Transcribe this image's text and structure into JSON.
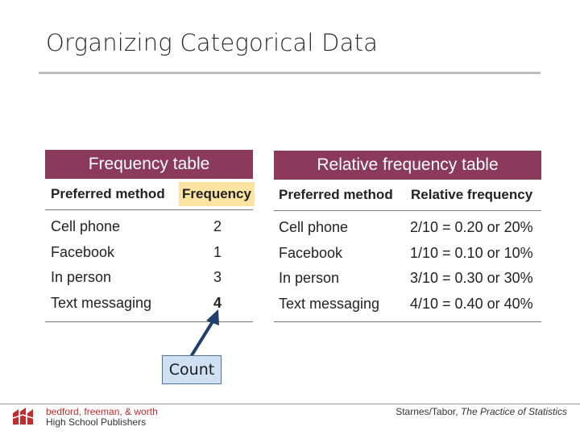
{
  "slide": {
    "title": "Organizing Categorical Data"
  },
  "frequency_table": {
    "header": "Frequency table",
    "columns": [
      "Preferred method",
      "Frequency"
    ],
    "rows": [
      {
        "method": "Cell phone",
        "value": "2"
      },
      {
        "method": "Facebook",
        "value": "1"
      },
      {
        "method": "In person",
        "value": "3"
      },
      {
        "method": "Text messaging",
        "value": "4"
      }
    ]
  },
  "relative_frequency_table": {
    "header": "Relative frequency table",
    "columns": [
      "Preferred method",
      "Relative frequency"
    ],
    "rows": [
      {
        "method": "Cell phone",
        "value": "2/10 = 0.20 or 20%"
      },
      {
        "method": "Facebook",
        "value": "1/10 = 0.10 or 10%"
      },
      {
        "method": "In person",
        "value": "3/10 = 0.30 or 30%"
      },
      {
        "method": "Text messaging",
        "value": "4/10 = 0.40 or 40%"
      }
    ]
  },
  "callout": {
    "label": "Count"
  },
  "footer": {
    "publisher_line1": "bedford, freeman, & worth",
    "publisher_line2": "High School Publishers",
    "citation_authors": "Starnes/Tabor,",
    "citation_title": "The Practice of Statistics"
  },
  "colors": {
    "header_bg": "#8b3a5c",
    "highlight": "#fbe3a2",
    "callout_bg": "#cfe0f3",
    "arrow": "#1f3f6e"
  }
}
